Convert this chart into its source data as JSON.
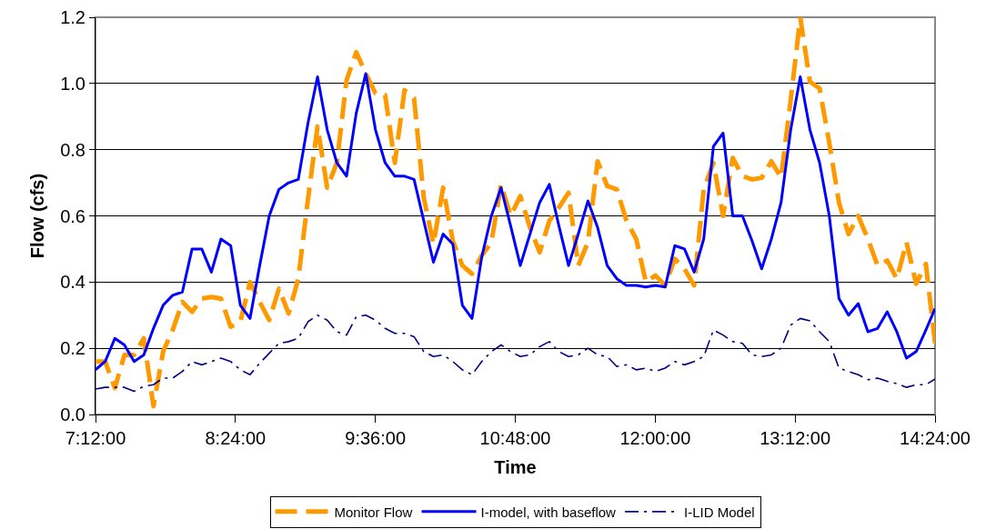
{
  "chart_data": {
    "type": "line",
    "xlabel": "Time",
    "ylabel": "Flow (cfs)",
    "x": [
      7.2,
      7.283,
      7.366,
      7.448,
      7.531,
      7.614,
      7.697,
      7.78,
      7.862,
      7.945,
      8.028,
      8.111,
      8.194,
      8.276,
      8.359,
      8.442,
      8.525,
      8.608,
      8.69,
      8.773,
      8.856,
      8.939,
      9.022,
      9.104,
      9.187,
      9.27,
      9.353,
      9.436,
      9.518,
      9.601,
      9.684,
      9.767,
      9.85,
      9.932,
      10.015,
      10.098,
      10.181,
      10.264,
      10.346,
      10.429,
      10.512,
      10.595,
      10.678,
      10.76,
      10.843,
      10.926,
      11.009,
      11.092,
      11.174,
      11.257,
      11.34,
      11.423,
      11.506,
      11.588,
      11.671,
      11.754,
      11.837,
      11.92,
      12.002,
      12.085,
      12.168,
      12.251,
      12.334,
      12.416,
      12.499,
      12.582,
      12.665,
      12.748,
      12.83,
      12.913,
      12.996,
      13.079,
      13.162,
      13.244,
      13.327,
      13.41,
      13.493,
      13.576,
      13.658,
      13.741,
      13.824,
      13.907,
      13.99,
      14.072,
      14.155,
      14.238,
      14.321,
      14.4
    ],
    "series": [
      {
        "name": "Monitor Flow",
        "color": "#ff9900",
        "line_style": "dashed",
        "values": [
          0.16,
          0.16,
          0.08,
          0.18,
          0.18,
          0.23,
          0.025,
          0.19,
          0.255,
          0.34,
          0.31,
          0.35,
          0.355,
          0.35,
          0.265,
          0.28,
          0.4,
          0.34,
          0.285,
          0.38,
          0.305,
          0.41,
          0.65,
          0.87,
          0.685,
          0.76,
          1.01,
          1.095,
          1.03,
          0.97,
          0.965,
          0.76,
          0.98,
          0.955,
          0.655,
          0.515,
          0.685,
          0.525,
          0.45,
          0.425,
          0.48,
          0.52,
          0.695,
          0.6,
          0.66,
          0.565,
          0.49,
          0.585,
          0.625,
          0.67,
          0.45,
          0.52,
          0.765,
          0.69,
          0.68,
          0.585,
          0.53,
          0.4,
          0.42,
          0.39,
          0.47,
          0.44,
          0.39,
          0.68,
          0.76,
          0.6,
          0.775,
          0.72,
          0.71,
          0.715,
          0.765,
          0.715,
          0.95,
          1.2,
          1.005,
          0.985,
          0.82,
          0.64,
          0.545,
          0.6,
          0.53,
          0.45,
          0.465,
          0.41,
          0.52,
          0.395,
          0.455,
          0.215
        ]
      },
      {
        "name": "I-model, with baseflow",
        "color": "#0000ff",
        "line_style": "solid",
        "values": [
          0.135,
          0.16,
          0.23,
          0.21,
          0.16,
          0.18,
          0.26,
          0.33,
          0.36,
          0.37,
          0.5,
          0.5,
          0.43,
          0.53,
          0.51,
          0.33,
          0.29,
          0.45,
          0.6,
          0.68,
          0.7,
          0.71,
          0.88,
          1.02,
          0.86,
          0.76,
          0.72,
          0.91,
          1.03,
          0.86,
          0.76,
          0.72,
          0.72,
          0.71,
          0.585,
          0.46,
          0.545,
          0.515,
          0.33,
          0.29,
          0.475,
          0.6,
          0.685,
          0.57,
          0.45,
          0.545,
          0.64,
          0.695,
          0.57,
          0.45,
          0.545,
          0.645,
          0.565,
          0.45,
          0.41,
          0.39,
          0.39,
          0.385,
          0.39,
          0.385,
          0.51,
          0.5,
          0.43,
          0.53,
          0.81,
          0.85,
          0.6,
          0.6,
          0.525,
          0.44,
          0.53,
          0.64,
          0.86,
          1.02,
          0.86,
          0.76,
          0.6,
          0.35,
          0.3,
          0.335,
          0.25,
          0.26,
          0.31,
          0.25,
          0.17,
          0.19,
          0.255,
          0.32
        ]
      },
      {
        "name": "I-LID Model",
        "color": "#000080",
        "line_style": "dashdot",
        "values": [
          0.077,
          0.082,
          0.082,
          0.082,
          0.07,
          0.085,
          0.09,
          0.11,
          0.11,
          0.13,
          0.16,
          0.15,
          0.16,
          0.17,
          0.16,
          0.135,
          0.12,
          0.155,
          0.185,
          0.215,
          0.22,
          0.23,
          0.28,
          0.3,
          0.285,
          0.25,
          0.24,
          0.295,
          0.3,
          0.285,
          0.26,
          0.245,
          0.245,
          0.235,
          0.19,
          0.175,
          0.18,
          0.16,
          0.135,
          0.12,
          0.16,
          0.19,
          0.21,
          0.19,
          0.175,
          0.18,
          0.205,
          0.22,
          0.19,
          0.175,
          0.18,
          0.2,
          0.18,
          0.175,
          0.145,
          0.15,
          0.135,
          0.14,
          0.13,
          0.14,
          0.16,
          0.15,
          0.16,
          0.175,
          0.255,
          0.24,
          0.22,
          0.215,
          0.18,
          0.175,
          0.18,
          0.2,
          0.27,
          0.29,
          0.283,
          0.25,
          0.22,
          0.14,
          0.13,
          0.12,
          0.105,
          0.11,
          0.1,
          0.093,
          0.082,
          0.09,
          0.09,
          0.107
        ]
      }
    ],
    "xlim": [
      7.2,
      14.4
    ],
    "xticks": [
      {
        "value": 7.2,
        "label": "7:12:00"
      },
      {
        "value": 8.4,
        "label": "8:24:00"
      },
      {
        "value": 9.6,
        "label": "9:36:00"
      },
      {
        "value": 10.8,
        "label": "10:48:00"
      },
      {
        "value": 12,
        "label": "12:00:00"
      },
      {
        "value": 13.2,
        "label": "13:12:00"
      },
      {
        "value": 14.4,
        "label": "14:24:00"
      }
    ],
    "ylim": [
      0,
      1.2
    ],
    "yticks": [
      {
        "value": 0,
        "label": "0.0"
      },
      {
        "value": 0.2,
        "label": "0.2"
      },
      {
        "value": 0.4,
        "label": "0.4"
      },
      {
        "value": 0.6,
        "label": "0.6"
      },
      {
        "value": 0.8,
        "label": "0.8"
      },
      {
        "value": 1.0,
        "label": "1.0"
      },
      {
        "value": 1.2,
        "label": "1.2"
      }
    ],
    "grid": "y",
    "legend": "bottom",
    "marker": "none"
  }
}
